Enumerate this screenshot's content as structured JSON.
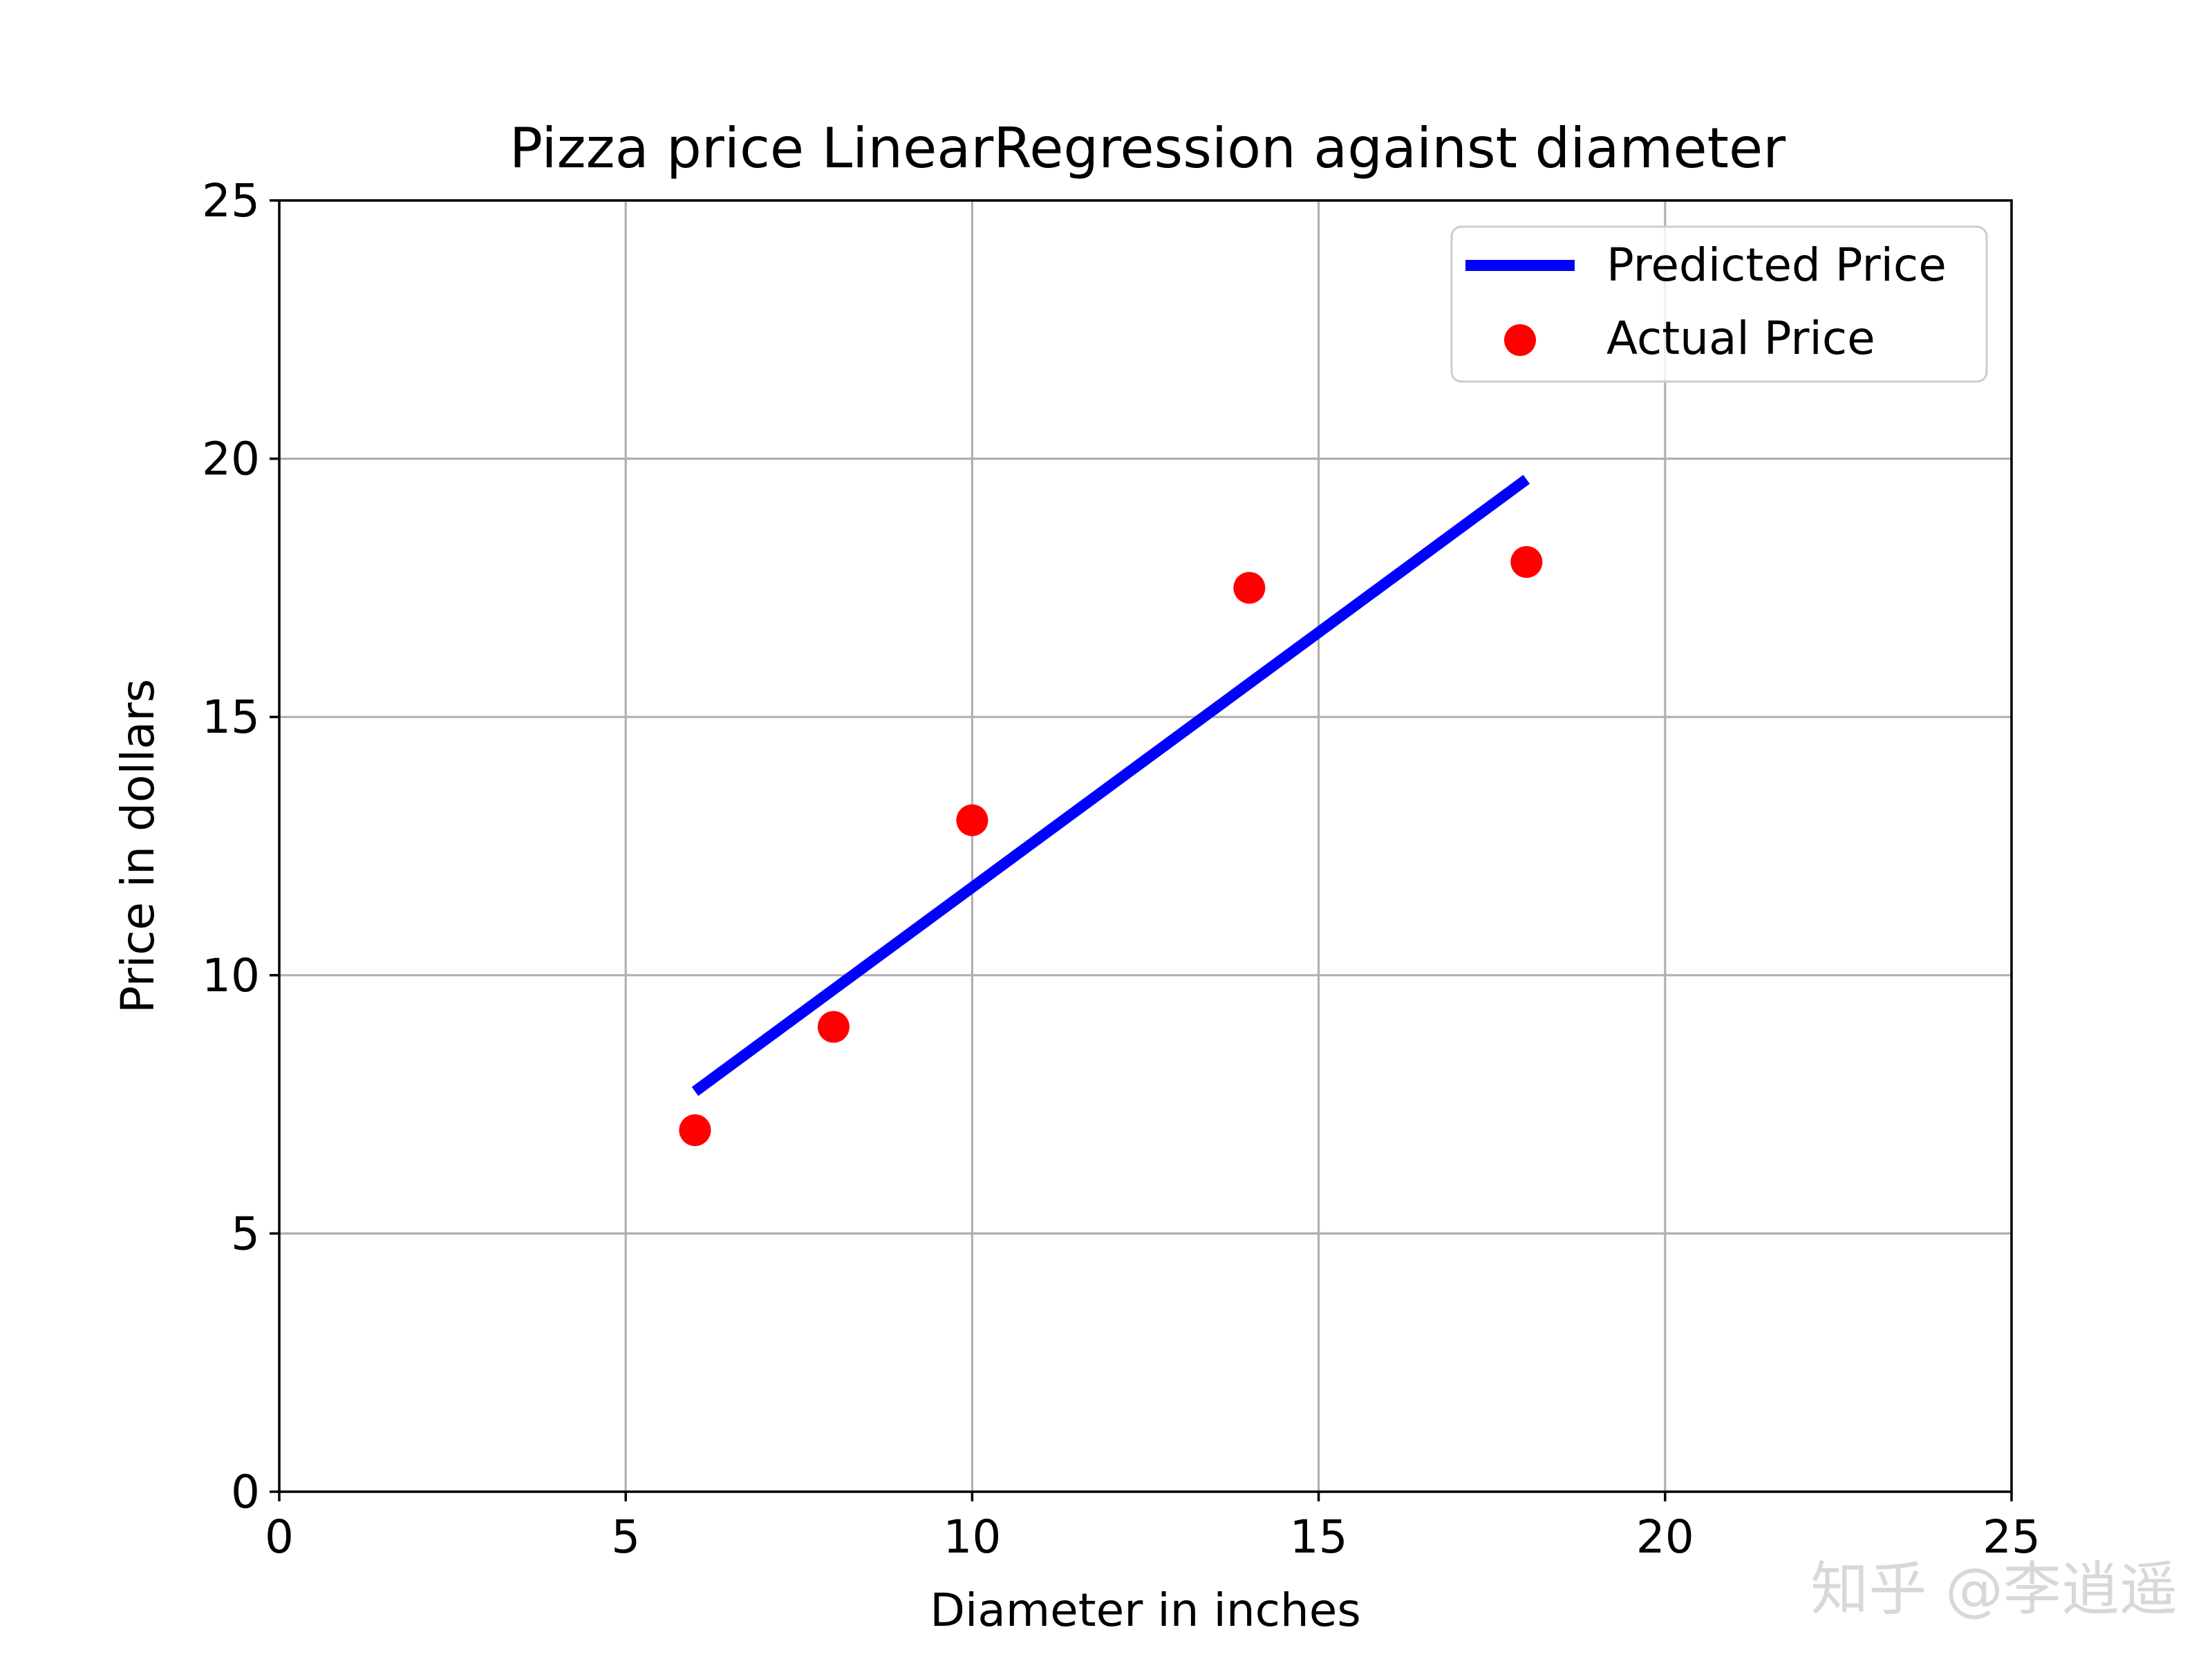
{
  "chart_data": {
    "type": "scatter",
    "title": "Pizza price LinearRegression against diameter",
    "xlabel": "Diameter in inches",
    "ylabel": "Price in dollars",
    "xlim": [
      0,
      25
    ],
    "ylim": [
      0,
      25
    ],
    "xticks": [
      "0",
      "5",
      "10",
      "15",
      "20",
      "25"
    ],
    "yticks": [
      "0",
      "5",
      "10",
      "15",
      "20",
      "25"
    ],
    "grid": true,
    "legend_position": "top-right",
    "series": [
      {
        "name": "Predicted Price",
        "kind": "line",
        "color": "#0000ff",
        "x": [
          6,
          18
        ],
        "y": [
          7.75,
          19.6
        ]
      },
      {
        "name": "Actual Price",
        "kind": "scatter",
        "color": "#ff0000",
        "x": [
          6,
          8,
          10,
          14,
          18
        ],
        "y": [
          7,
          9,
          13,
          17.5,
          18
        ]
      }
    ]
  },
  "watermark": {
    "text": "知乎 @李逍遥"
  }
}
